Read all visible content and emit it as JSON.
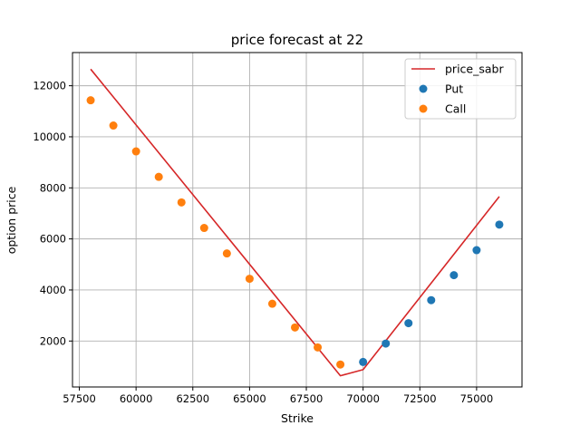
{
  "chart_data": {
    "type": "scatter",
    "title": "price forecast at 22",
    "xlabel": "Strike",
    "ylabel": "option price",
    "xlim": [
      57200,
      77000
    ],
    "ylim": [
      200,
      13300
    ],
    "grid": true,
    "legend_position": "top-right",
    "x_ticks": [
      57500,
      60000,
      62500,
      65000,
      67500,
      70000,
      72500,
      75000
    ],
    "x_tick_labels": [
      "57500",
      "60000",
      "62500",
      "65000",
      "67500",
      "70000",
      "72500",
      "75000"
    ],
    "y_ticks": [
      2000,
      4000,
      6000,
      8000,
      10000,
      12000
    ],
    "y_tick_labels": [
      "2000",
      "4000",
      "6000",
      "8000",
      "10000",
      "12000"
    ],
    "series": [
      {
        "name": "price_sabr",
        "kind": "line",
        "color": "#d62728",
        "x": [
          58000,
          69000,
          70000,
          76000
        ],
        "y": [
          12650,
          640,
          880,
          7660
        ]
      },
      {
        "name": "Put",
        "kind": "scatter",
        "color": "#1f77b4",
        "x": [
          70000,
          71000,
          72000,
          73000,
          74000,
          75000,
          76000
        ],
        "y": [
          1180,
          1900,
          2700,
          3600,
          4580,
          5560,
          6560
        ]
      },
      {
        "name": "Call",
        "kind": "scatter",
        "color": "#ff7f0e",
        "x": [
          58000,
          59000,
          60000,
          61000,
          62000,
          63000,
          64000,
          65000,
          66000,
          67000,
          68000,
          69000
        ],
        "y": [
          11430,
          10440,
          9430,
          8430,
          7430,
          6430,
          5430,
          4440,
          3460,
          2530,
          1750,
          1080
        ]
      }
    ]
  }
}
